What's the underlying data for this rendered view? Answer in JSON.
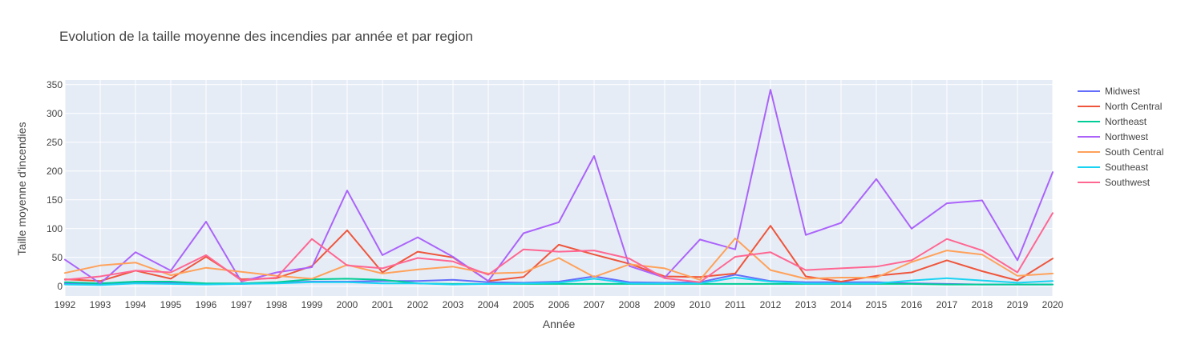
{
  "chart_data": {
    "type": "line",
    "title": "Evolution de la taille moyenne des incendies par année et par region",
    "xlabel": "Année",
    "ylabel": "Taille moyenne d'incendies",
    "x": [
      1992,
      1993,
      1994,
      1995,
      1996,
      1997,
      1998,
      1999,
      2000,
      2001,
      2002,
      2003,
      2004,
      2005,
      2006,
      2007,
      2008,
      2009,
      2010,
      2011,
      2012,
      2013,
      2014,
      2015,
      2016,
      2017,
      2018,
      2019,
      2020
    ],
    "xlim": [
      1992,
      2020
    ],
    "ylim": [
      -17,
      358
    ],
    "yticks": [
      0,
      50,
      100,
      150,
      200,
      250,
      300,
      350
    ],
    "grid": true,
    "legend_position": "top-right",
    "background_color": "#e5ecf6",
    "series": [
      {
        "name": "Midwest",
        "color": "#636efa",
        "values": [
          5,
          4,
          7,
          6,
          4,
          4,
          6,
          8,
          8,
          9,
          9,
          11,
          7,
          6,
          8,
          17,
          7,
          6,
          7,
          20,
          9,
          7,
          7,
          7,
          5,
          4,
          3,
          3,
          3
        ]
      },
      {
        "name": "North Central",
        "color": "#ef553b",
        "values": [
          12,
          9,
          27,
          13,
          51,
          12,
          14,
          35,
          97,
          24,
          60,
          50,
          9,
          16,
          72,
          55,
          39,
          17,
          16,
          22,
          105,
          17,
          8,
          18,
          24,
          45,
          26,
          10,
          48
        ]
      },
      {
        "name": "Northeast",
        "color": "#00cc96",
        "values": [
          7,
          5,
          8,
          8,
          5,
          5,
          7,
          12,
          13,
          11,
          5,
          4,
          4,
          4,
          4,
          4,
          4,
          4,
          4,
          4,
          4,
          4,
          4,
          4,
          4,
          3,
          3,
          3,
          3
        ]
      },
      {
        "name": "Northwest",
        "color": "#ab63fa",
        "values": [
          46,
          5,
          59,
          27,
          112,
          8,
          24,
          33,
          166,
          54,
          85,
          51,
          9,
          92,
          111,
          226,
          35,
          15,
          81,
          64,
          341,
          89,
          110,
          186,
          100,
          144,
          149,
          45,
          198
        ]
      },
      {
        "name": "South Central",
        "color": "#ffa15a",
        "values": [
          23,
          36,
          41,
          19,
          32,
          25,
          18,
          13,
          37,
          22,
          29,
          34,
          22,
          24,
          49,
          16,
          38,
          31,
          11,
          83,
          28,
          13,
          15,
          15,
          42,
          62,
          55,
          18,
          22
        ]
      },
      {
        "name": "Southeast",
        "color": "#19d3f3",
        "values": [
          3,
          2,
          5,
          4,
          3,
          4,
          5,
          7,
          7,
          5,
          5,
          3,
          4,
          5,
          6,
          13,
          5,
          5,
          5,
          15,
          8,
          5,
          5,
          5,
          10,
          14,
          10,
          6,
          9
        ]
      },
      {
        "name": "Southwest",
        "color": "#ff6692",
        "values": [
          11,
          17,
          27,
          24,
          54,
          10,
          15,
          82,
          36,
          31,
          49,
          43,
          20,
          64,
          60,
          62,
          48,
          14,
          7,
          51,
          59,
          28,
          31,
          34,
          45,
          82,
          62,
          24,
          127
        ]
      }
    ]
  }
}
